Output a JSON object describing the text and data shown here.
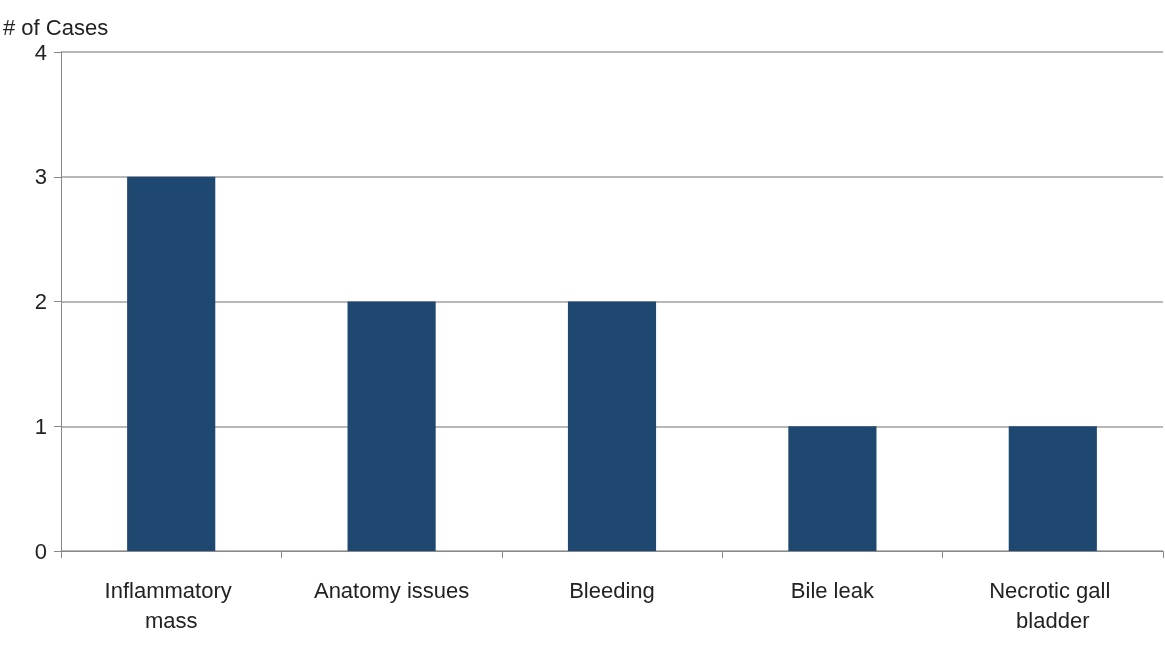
{
  "chart_data": {
    "type": "bar",
    "ylabel": "# of Cases",
    "categories": [
      "Inflammatory mass",
      "Anatomy issues",
      "Bleeding",
      "Bile leak",
      "Necrotic gall bladder"
    ],
    "values": [
      3,
      2,
      2,
      1,
      1
    ],
    "color": "#1f4870",
    "ylim": [
      0,
      4
    ],
    "yticks": [
      0,
      1,
      2,
      3,
      4
    ],
    "grid": "y"
  }
}
